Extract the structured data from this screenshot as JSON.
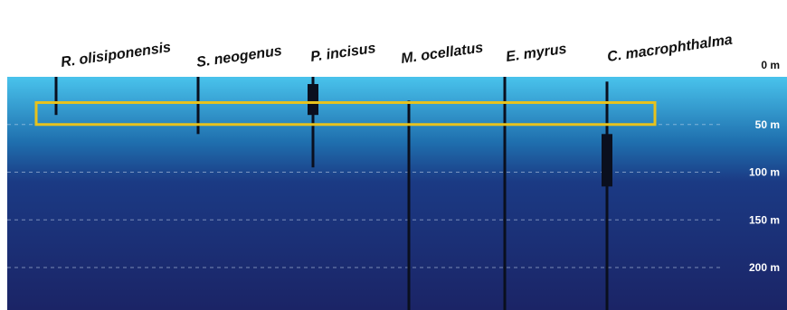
{
  "depth_scale": {
    "labels": [
      {
        "text": "0 m",
        "depth_m": 0
      },
      {
        "text": "50 m",
        "depth_m": 50
      },
      {
        "text": "100 m",
        "depth_m": 100
      },
      {
        "text": "150 m",
        "depth_m": 150
      },
      {
        "text": "200 m",
        "depth_m": 200
      }
    ]
  },
  "species": [
    {
      "name": "R. olisiponensis",
      "range_m": [
        0,
        40
      ],
      "core_m": null
    },
    {
      "name": "S. neogenus",
      "range_m": [
        0,
        60
      ],
      "core_m": null
    },
    {
      "name": "P. incisus",
      "range_m": [
        0,
        95
      ],
      "core_m": [
        0,
        40
      ]
    },
    {
      "name": "M. ocellatus",
      "range_m": [
        25,
        260
      ],
      "core_m": null
    },
    {
      "name": "E. myrus",
      "range_m": [
        0,
        260
      ],
      "core_m": null
    },
    {
      "name": "C. macrophthalma",
      "range_m": [
        5,
        260
      ],
      "core_m": [
        60,
        115
      ]
    }
  ],
  "highlight_band_m": [
    27,
    50
  ],
  "colors": {
    "water_top": "#49c3ec",
    "water_bottom": "#1b2466",
    "bar": "#0a0f1e",
    "highlight": "#e7c21d",
    "gridline": "#c8d8ee"
  }
}
